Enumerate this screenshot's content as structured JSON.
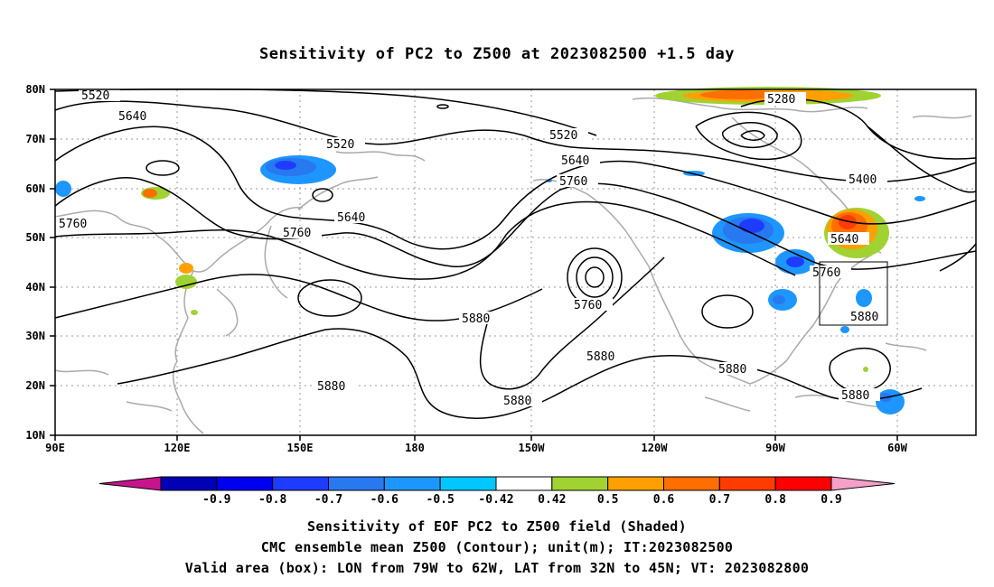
{
  "title": "Sensitivity of PC2 to Z500 at 2023082500 +1.5 day",
  "lon_ticks": [
    "90E",
    "120E",
    "150E",
    "180",
    "150W",
    "120W",
    "90W",
    "60W"
  ],
  "lat_ticks": [
    "80N",
    "70N",
    "60N",
    "50N",
    "40N",
    "30N",
    "20N",
    "10N"
  ],
  "contour_labels": {
    "c5520a": "5520",
    "c5640a": "5640",
    "c5520b": "5520",
    "c5640b": "5640",
    "c5760a": "5760",
    "c5760b": "5760",
    "c5520c": "5520",
    "c5640c": "5640",
    "c5760c": "5760",
    "c5760d": "5760",
    "c5880a": "5880",
    "c5880b": "5880",
    "c5880c": "5880",
    "c5880d": "5880",
    "c5280": "5280",
    "c5400": "5400",
    "c5640d": "5640",
    "c5760e": "5760",
    "c5880e": "5880",
    "c5880f": "5880"
  },
  "colorbar": {
    "labels": [
      "-0.9",
      "-0.8",
      "-0.7",
      "-0.6",
      "-0.5",
      "-0.42",
      "0.42",
      "0.5",
      "0.6",
      "0.7",
      "0.8",
      "0.9"
    ],
    "colors": [
      "#0000b4",
      "#0000f0",
      "#1e3cff",
      "#2878f0",
      "#1e96ff",
      "#00c8ff",
      "#ffffff",
      "#a0d232",
      "#ffa000",
      "#ff6e00",
      "#ff3c00",
      "#ff0000"
    ],
    "low_arrow_color": "#c8148c",
    "high_arrow_color": "#f5a0c8"
  },
  "valid_box": {
    "lon_west": "79W",
    "lon_east": "62W",
    "lat_south": "32N",
    "lat_north": "45N"
  },
  "captions": {
    "line1": "Sensitivity of EOF PC2 to Z500 field (Shaded)",
    "line2": "CMC ensemble mean Z500 (Contour); unit(m); IT:2023082500",
    "line3": "Valid area (box): LON from 79W to 62W, LAT from 32N to 45N; VT: 2023082800"
  }
}
